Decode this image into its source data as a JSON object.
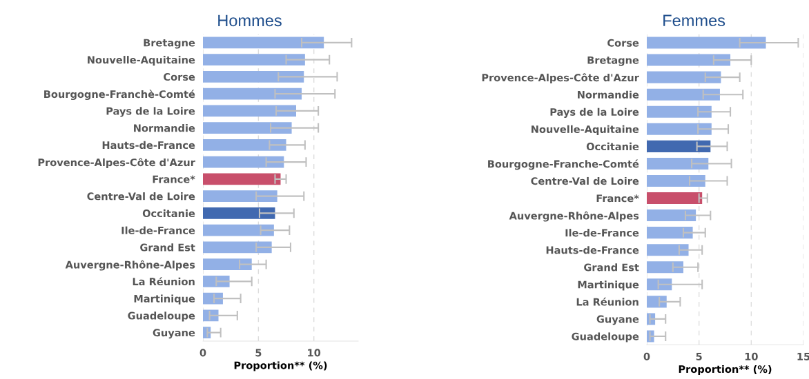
{
  "chart_data": [
    {
      "type": "bar",
      "orientation": "horizontal",
      "title": "Hommes",
      "xlabel": "Proportion** (%)",
      "categories": [
        "Bretagne",
        "Nouvelle-Aquitaine",
        "Corse",
        "Bourgogne-Franchè-Comté",
        "Pays de la Loire",
        "Normandie",
        "Hauts-de-France",
        "Provence-Alpes-Côte d'Azur",
        "France*",
        "Centre-Val de Loire",
        "Occitanie",
        "Ile-de-France",
        "Grand Est",
        "Auvergne-Rhône-Alpes",
        "La Réunion",
        "Martinique",
        "Guadeloupe",
        "Guyane"
      ],
      "values": [
        10.9,
        9.2,
        9.1,
        8.9,
        8.4,
        8.0,
        7.5,
        7.3,
        7.0,
        6.7,
        6.5,
        6.4,
        6.2,
        4.4,
        2.4,
        1.8,
        1.4,
        0.7
      ],
      "errors": [
        [
          8.9,
          13.4
        ],
        [
          7.5,
          11.4
        ],
        [
          6.8,
          12.1
        ],
        [
          6.5,
          11.9
        ],
        [
          6.6,
          10.4
        ],
        [
          6.1,
          10.4
        ],
        [
          6.0,
          9.2
        ],
        [
          5.7,
          9.3
        ],
        [
          6.5,
          7.5
        ],
        [
          4.8,
          9.1
        ],
        [
          5.1,
          8.2
        ],
        [
          5.2,
          7.8
        ],
        [
          4.8,
          7.9
        ],
        [
          3.3,
          5.7
        ],
        [
          1.2,
          4.4
        ],
        [
          1.0,
          3.4
        ],
        [
          0.6,
          3.1
        ],
        [
          0.4,
          1.6
        ]
      ],
      "colors": [
        "#92b0e6",
        "#92b0e6",
        "#92b0e6",
        "#92b0e6",
        "#92b0e6",
        "#92b0e6",
        "#92b0e6",
        "#92b0e6",
        "#c84f6b",
        "#92b0e6",
        "#4169b0",
        "#92b0e6",
        "#92b0e6",
        "#92b0e6",
        "#92b0e6",
        "#92b0e6",
        "#92b0e6",
        "#92b0e6"
      ],
      "xlim": [
        0,
        14
      ],
      "xticks": [
        0,
        5,
        10
      ],
      "grid": "x"
    },
    {
      "type": "bar",
      "orientation": "horizontal",
      "title": "Femmes",
      "xlabel": "Proportion** (%)",
      "categories": [
        "Corse",
        "Bretagne",
        "Provence-Alpes-Côte d'Azur",
        "Normandie",
        "Pays de la Loire",
        "Nouvelle-Aquitaine",
        "Occitanie",
        "Bourgogne-Franche-Comté",
        "Centre-Val de Loire",
        "France*",
        "Auvergne-Rhône-Alpes",
        "Ile-de-France",
        "Hauts-de-France",
        "Grand Est",
        "Martinique",
        "La Réunion",
        "Guyane",
        "Guadeloupe"
      ],
      "values": [
        11.4,
        8.0,
        7.1,
        7.0,
        6.2,
        6.2,
        6.1,
        5.9,
        5.6,
        5.3,
        4.7,
        4.4,
        4.0,
        3.5,
        2.4,
        1.9,
        0.8,
        0.7
      ],
      "errors": [
        [
          8.9,
          14.5
        ],
        [
          6.4,
          10.0
        ],
        [
          5.6,
          8.9
        ],
        [
          5.4,
          9.2
        ],
        [
          4.9,
          8.0
        ],
        [
          4.9,
          7.8
        ],
        [
          4.8,
          7.7
        ],
        [
          4.3,
          8.1
        ],
        [
          4.1,
          7.7
        ],
        [
          5.0,
          5.8
        ],
        [
          3.7,
          6.1
        ],
        [
          3.5,
          5.6
        ],
        [
          3.1,
          5.3
        ],
        [
          2.5,
          4.9
        ],
        [
          1.1,
          5.3
        ],
        [
          1.2,
          3.2
        ],
        [
          0.3,
          1.8
        ],
        [
          0.3,
          1.8
        ]
      ],
      "colors": [
        "#92b0e6",
        "#92b0e6",
        "#92b0e6",
        "#92b0e6",
        "#92b0e6",
        "#92b0e6",
        "#4169b0",
        "#92b0e6",
        "#92b0e6",
        "#c84f6b",
        "#92b0e6",
        "#92b0e6",
        "#92b0e6",
        "#92b0e6",
        "#92b0e6",
        "#92b0e6",
        "#92b0e6",
        "#92b0e6"
      ],
      "xlim": [
        0,
        15
      ],
      "xticks": [
        0,
        5,
        10,
        15
      ],
      "grid": "x"
    }
  ]
}
